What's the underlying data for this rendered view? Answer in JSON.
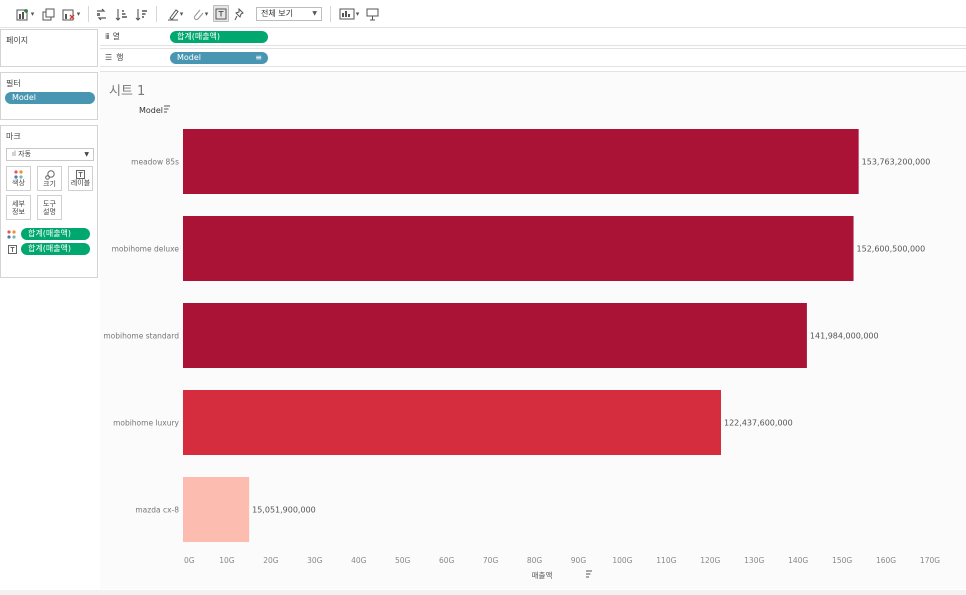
{
  "toolbar": {
    "view_select": "전체 보기",
    "icons": [
      "new-worksheet-icon",
      "duplicate-sheet-icon",
      "clear-sheet-icon",
      "swap-axes-icon",
      "sort-ascending-icon",
      "sort-descending-icon",
      "highlight-icon",
      "group-icon",
      "show-labels-icon",
      "pin-icon",
      "show-me-icon",
      "presentation-icon"
    ]
  },
  "panels": {
    "pages_title": "페이지",
    "filters_title": "필터",
    "filter_pill": "Model",
    "marks_title": "마크",
    "marks_type": "자동",
    "mark_buttons": {
      "color": "색상",
      "size": "크기",
      "label": "레이블",
      "detail": "세부\n정보",
      "tooltip": "도구\n설명"
    },
    "mark_pills": [
      "합계(매출액)",
      "합계(매출액)"
    ]
  },
  "shelves": {
    "columns_label": "열",
    "columns_pill": "합계(매출액)",
    "rows_label": "행",
    "rows_pill": "Model"
  },
  "sheet": {
    "title": "시트 1"
  },
  "colors": {
    "bar_dark": "#ab1336",
    "bar_mid": "#d62d3e",
    "bar_light": "#fcbdb0",
    "pill_blue": "#4996b2",
    "pill_green": "#00a76f"
  },
  "chart_data": {
    "type": "bar",
    "orientation": "horizontal",
    "row_header": "Model",
    "xlabel": "매출액",
    "categories": [
      "meadow 85s",
      "mobihome deluxe",
      "mobihome standard",
      "mobihome luxury",
      "mazda cx-8"
    ],
    "values": [
      153763200000,
      152600500000,
      141984000000,
      122437600000,
      15051900000
    ],
    "data_labels": [
      "153,763,200,000",
      "152,600,500,000",
      "141,984,000,000",
      "122,437,600,000",
      "15,051,900,000"
    ],
    "bar_colors": [
      "#ab1336",
      "#ab1336",
      "#ab1336",
      "#d62d3e",
      "#fcbdb0"
    ],
    "xlim": [
      0,
      170000000000
    ],
    "xticks": [
      0,
      10000000000,
      20000000000,
      30000000000,
      40000000000,
      50000000000,
      60000000000,
      70000000000,
      80000000000,
      90000000000,
      100000000000,
      110000000000,
      120000000000,
      130000000000,
      140000000000,
      150000000000,
      160000000000,
      170000000000
    ],
    "xtick_labels": [
      "0G",
      "10G",
      "20G",
      "30G",
      "40G",
      "50G",
      "60G",
      "70G",
      "80G",
      "90G",
      "100G",
      "110G",
      "120G",
      "130G",
      "140G",
      "150G",
      "160G",
      "170G"
    ],
    "grid": false,
    "legend": "none"
  }
}
